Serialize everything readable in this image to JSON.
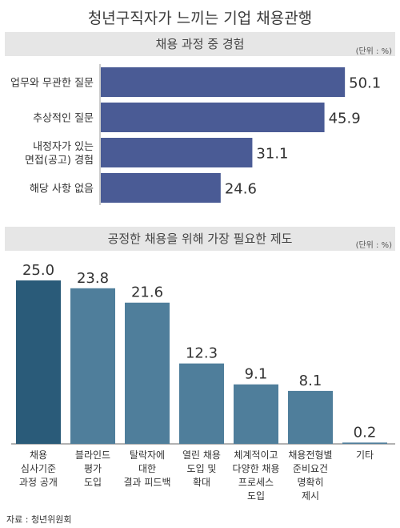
{
  "title": "청년구직자가 느끼는 기업 채용관행",
  "source": "자료 : 청년위원회",
  "chart_data": [
    {
      "type": "bar",
      "orientation": "horizontal",
      "title": "채용 과정 중 경험",
      "unit": "(단위 : %)",
      "categories": [
        [
          "업무와 무관한 질문"
        ],
        [
          "추상적인 질문"
        ],
        [
          "내정자가 있는",
          "면접(공고) 경험"
        ],
        [
          "해당 사항 없음"
        ]
      ],
      "values": [
        50.1,
        45.9,
        31.1,
        24.6
      ],
      "xlim": [
        0,
        55
      ],
      "color": "#4a5b95"
    },
    {
      "type": "bar",
      "orientation": "vertical",
      "title": "공정한 채용을 위해 가장 필요한 제도",
      "unit": "(단위 : %)",
      "categories": [
        [
          "채용",
          "심사기준",
          "과정 공개"
        ],
        [
          "블라인드",
          "평가",
          "도입"
        ],
        [
          "탈락자에",
          "대한",
          "결과 피드백"
        ],
        [
          "열린 채용",
          "도입 및",
          "확대"
        ],
        [
          "체계적이고",
          "다양한 채용",
          "프로세스",
          "도입"
        ],
        [
          "채용전형별",
          "준비요건",
          "명확히",
          "제시"
        ],
        [
          "기타"
        ]
      ],
      "values": [
        25.0,
        23.8,
        21.6,
        12.3,
        9.1,
        8.1,
        0.2
      ],
      "ylim": [
        0,
        28
      ],
      "colors": [
        "#2a5b79",
        "#4f7e9b",
        "#4f7e9b",
        "#4f7e9b",
        "#4f7e9b",
        "#4f7e9b",
        "#4f7e9b"
      ]
    }
  ]
}
